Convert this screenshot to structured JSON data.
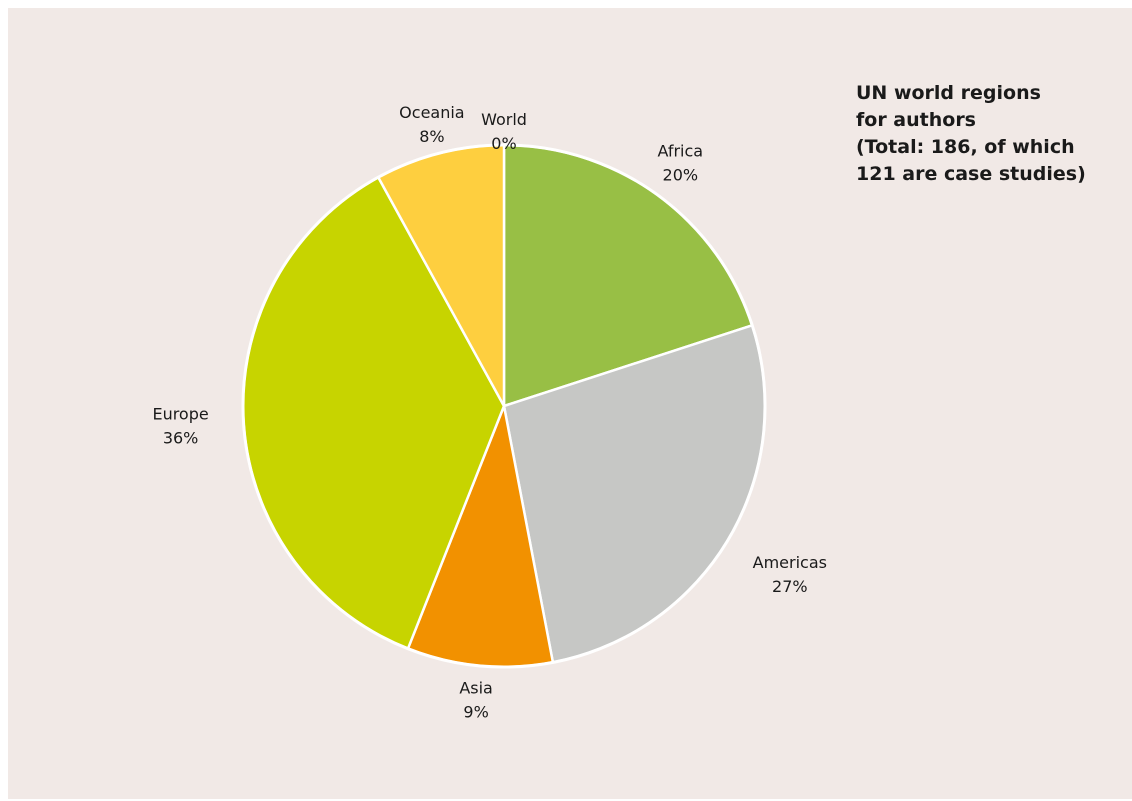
{
  "chart_data": {
    "type": "pie",
    "title_lines": [
      "UN world regions",
      "for authors",
      "(Total: 186, of which",
      "121 are case studies)"
    ],
    "slices": [
      {
        "label": "Africa",
        "value": 20,
        "value_label": "20%",
        "color": "#98bf45"
      },
      {
        "label": "Americas",
        "value": 27,
        "value_label": "27%",
        "color": "#c6c7c5"
      },
      {
        "label": "Asia",
        "value": 9,
        "value_label": "9%",
        "color": "#f29100"
      },
      {
        "label": "Europe",
        "value": 36,
        "value_label": "36%",
        "color": "#c7d400"
      },
      {
        "label": "Oceania",
        "value": 8,
        "value_label": "8%",
        "color": "#fecf3f"
      },
      {
        "label": "World",
        "value": 0,
        "value_label": "0%",
        "color": "#f0b600"
      }
    ],
    "start_angle": "12 o'clock",
    "direction": "clockwise",
    "legend": "none"
  }
}
